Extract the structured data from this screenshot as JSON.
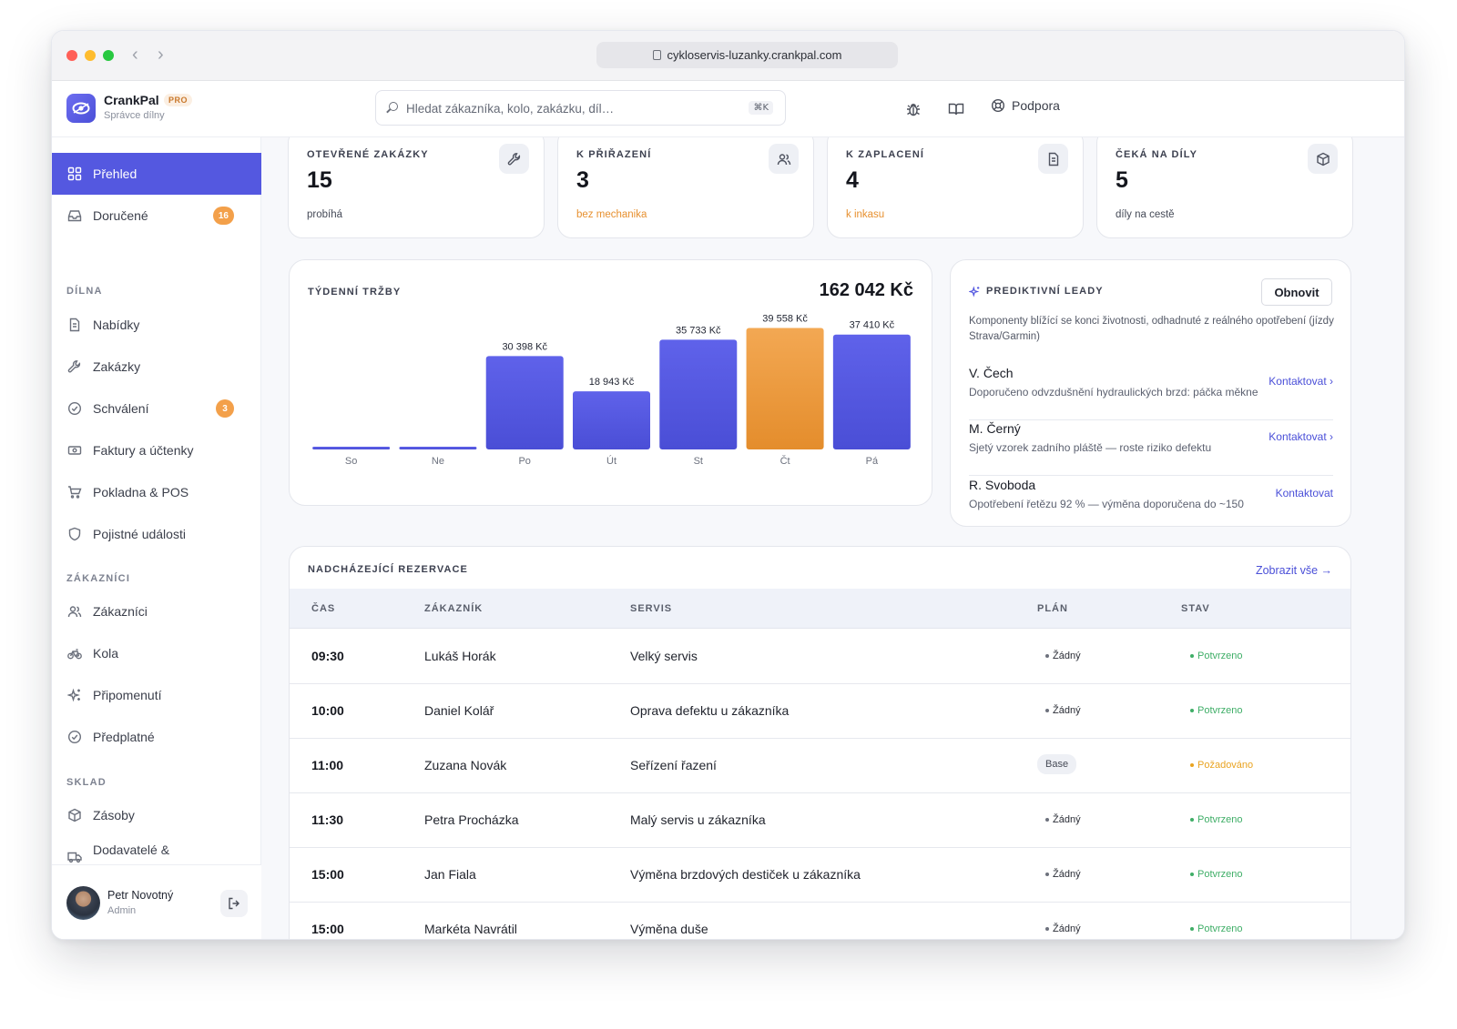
{
  "browser": {
    "url": "cykloservis-luzanky.crankpal.com"
  },
  "app": {
    "name": "CrankPal",
    "tier": "PRO",
    "subtitle": "Správce dílny"
  },
  "search": {
    "placeholder": "Hledat zákazníka, kolo, zakázku, díl…",
    "shortcut": "⌘K"
  },
  "header": {
    "support_label": "Podpora"
  },
  "sidebar": {
    "items": [
      {
        "label": "Přehled",
        "icon": "grid-icon",
        "active": true
      },
      {
        "label": "Doručené",
        "icon": "inbox-icon",
        "badge": "16"
      }
    ],
    "sections": [
      {
        "title": "DÍLNA",
        "items": [
          {
            "label": "Nabídky",
            "icon": "document-icon"
          },
          {
            "label": "Zakázky",
            "icon": "wrench-icon"
          },
          {
            "label": "Schválení",
            "icon": "check-circle-icon",
            "badge": "3"
          },
          {
            "label": "Faktury a účtenky",
            "icon": "banknote-icon"
          },
          {
            "label": "Pokladna & POS",
            "icon": "cart-icon"
          },
          {
            "label": "Pojistné události",
            "icon": "shield-icon"
          }
        ]
      },
      {
        "title": "ZÁKAZNÍCI",
        "items": [
          {
            "label": "Zákazníci",
            "icon": "users-icon"
          },
          {
            "label": "Kola",
            "icon": "bike-icon"
          },
          {
            "label": "Připomenutí",
            "icon": "sparkles-icon"
          },
          {
            "label": "Předplatné",
            "icon": "check-circle-icon"
          }
        ]
      },
      {
        "title": "SKLAD",
        "items": [
          {
            "label": "Zásoby",
            "icon": "box-icon"
          },
          {
            "label": "Dodavatelé &",
            "icon": "truck-icon"
          }
        ]
      }
    ],
    "user": {
      "name": "Petr Novotný",
      "role": "Admin"
    }
  },
  "stats": [
    {
      "label": "OTEVŘENÉ ZAKÁZKY",
      "value": "15",
      "sub": "probíhá",
      "icon": "wrench-icon",
      "highlight": false
    },
    {
      "label": "K PŘIŘAZENÍ",
      "value": "3",
      "sub": "bez mechanika",
      "icon": "users-icon",
      "highlight": true
    },
    {
      "label": "K ZAPLACENÍ",
      "value": "4",
      "sub": "k inkasu",
      "icon": "document-icon",
      "highlight": true
    },
    {
      "label": "ČEKÁ NA DÍLY",
      "value": "5",
      "sub": "díly na cestě",
      "icon": "box-icon",
      "highlight": false
    }
  ],
  "revenue": {
    "title": "TÝDENNÍ TRŽBY",
    "total": "162 042 Kč",
    "chart_data": {
      "type": "bar",
      "categories": [
        "So",
        "Ne",
        "Po",
        "Út",
        "St",
        "Čt",
        "Pá"
      ],
      "values": [
        0,
        0,
        30398,
        18943,
        35733,
        39558,
        37410
      ],
      "labels": [
        "",
        "",
        "30 398 Kč",
        "18 943 Kč",
        "35 733 Kč",
        "39 558 Kč",
        "37 410 Kč"
      ],
      "highlight_index": 5,
      "colors": {
        "bar": "#5458e0",
        "highlight": "#f0a04b"
      },
      "ylim": [
        0,
        40000
      ]
    }
  },
  "leads": {
    "title": "PREDIKTIVNÍ LEADY",
    "refresh_label": "Obnovit",
    "description": "Komponenty blížící se konci životnosti, odhadnuté z reálného opotřebení (jízdy Strava/Garmin)",
    "items": [
      {
        "name": "V. Čech",
        "desc": "Doporučeno odvzdušnění hydraulických brzd: páčka měkne",
        "cta": "Kontaktovat ›"
      },
      {
        "name": "M. Černý",
        "desc": "Sjetý vzorek zadního pláště — roste riziko defektu",
        "cta": "Kontaktovat ›"
      },
      {
        "name": "R. Svoboda",
        "desc": "Opotřebení řetězu 92 % — výměna doporučena do ~150",
        "cta": "Kontaktovat"
      }
    ]
  },
  "bookings": {
    "title": "NADCHÁZEJÍCÍ REZERVACE",
    "view_all": "Zobrazit vše →",
    "columns": [
      "ČAS",
      "ZÁKAZNÍK",
      "SERVIS",
      "PLÁN",
      "STAV"
    ],
    "rows": [
      {
        "time": "09:30",
        "customer": "Lukáš Horák",
        "service": "Velký servis",
        "plan": "Žádný",
        "plan_pill": false,
        "status": "Potvrzeno",
        "pending": false
      },
      {
        "time": "10:00",
        "customer": "Daniel Kolář",
        "service": "Oprava defektu u zákazníka",
        "plan": "Žádný",
        "plan_pill": false,
        "status": "Potvrzeno",
        "pending": false
      },
      {
        "time": "11:00",
        "customer": "Zuzana Novák",
        "service": "Seřízení řazení",
        "plan": "Base",
        "plan_pill": true,
        "status": "Požadováno",
        "pending": true
      },
      {
        "time": "11:30",
        "customer": "Petra Procházka",
        "service": "Malý servis u zákazníka",
        "plan": "Žádný",
        "plan_pill": false,
        "status": "Potvrzeno",
        "pending": false
      },
      {
        "time": "15:00",
        "customer": "Jan Fiala",
        "service": "Výměna brzdových destiček u zákazníka",
        "plan": "Žádný",
        "plan_pill": false,
        "status": "Potvrzeno",
        "pending": false
      },
      {
        "time": "15:00",
        "customer": "Markéta Navrátil",
        "service": "Výměna duše",
        "plan": "Žádný",
        "plan_pill": false,
        "status": "Potvrzeno",
        "pending": false
      }
    ]
  }
}
